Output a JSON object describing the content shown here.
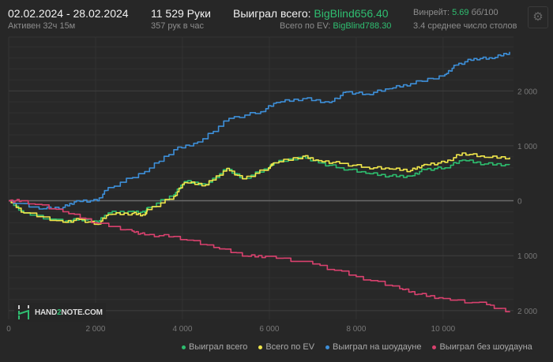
{
  "header": {
    "date_range": "02.02.2024 - 28.02.2024",
    "active": "Активен 32ч 15м",
    "hands": "11 529 Руки",
    "hands_per_hour": "357 рук в час",
    "won_total_label": "Выиграл всего:",
    "won_total_value": "BigBlind656.40",
    "ev_label": "Всего по EV:",
    "ev_value": "BigBlind788.30",
    "winrate_label": "Винрейт:",
    "winrate_value": "5.69",
    "winrate_unit": "бб/100",
    "tables": "3.4 среднее число столов",
    "settings_icon": "gear-icon"
  },
  "logo": {
    "text_a": "HAND",
    "text_b": "2",
    "text_c": "NOTE.COM"
  },
  "colors": {
    "accent_green": "#2fbf71",
    "series": [
      "#2dbd6e",
      "#f0e64a",
      "#3d8fd9",
      "#d9416e"
    ]
  },
  "chart_data": {
    "type": "line",
    "xlim": [
      0,
      11620
    ],
    "ylim": [
      -2160,
      2980
    ],
    "x_ticks": [
      {
        "v": 0,
        "label": "0"
      },
      {
        "v": 2000,
        "label": "2 000"
      },
      {
        "v": 4000,
        "label": "4 000"
      },
      {
        "v": 6000,
        "label": "6 000"
      },
      {
        "v": 8000,
        "label": "8 000"
      },
      {
        "v": 10000,
        "label": "10 000"
      }
    ],
    "y_ticks": [
      {
        "v": 2000,
        "label": "2 000"
      },
      {
        "v": 1000,
        "label": "1 000"
      },
      {
        "v": 0,
        "label": "0"
      },
      {
        "v": -1000,
        "label": "1 000"
      },
      {
        "v": -2000,
        "label": "2 000"
      }
    ],
    "grid": true,
    "legend_position": "bottom-right",
    "series": [
      {
        "name": "Выиграл всего",
        "color": "#2dbd6e",
        "points": [
          [
            0,
            0
          ],
          [
            345,
            -220
          ],
          [
            1250,
            -390
          ],
          [
            1620,
            -330
          ],
          [
            2040,
            -390
          ],
          [
            2290,
            -220
          ],
          [
            2840,
            -190
          ],
          [
            3130,
            -220
          ],
          [
            3200,
            -120
          ],
          [
            3800,
            110
          ],
          [
            4040,
            350
          ],
          [
            4530,
            300
          ],
          [
            5020,
            590
          ],
          [
            5380,
            400
          ],
          [
            5980,
            600
          ],
          [
            6110,
            690
          ],
          [
            6770,
            810
          ],
          [
            7130,
            690
          ],
          [
            7620,
            600
          ],
          [
            8220,
            500
          ],
          [
            8760,
            450
          ],
          [
            9250,
            450
          ],
          [
            9560,
            570
          ],
          [
            10040,
            600
          ],
          [
            10440,
            740
          ],
          [
            10950,
            670
          ],
          [
            11529,
            656
          ]
        ]
      },
      {
        "name": "Всего по EV",
        "color": "#f0e64a",
        "points": [
          [
            0,
            0
          ],
          [
            345,
            -220
          ],
          [
            1250,
            -390
          ],
          [
            1620,
            -340
          ],
          [
            2040,
            -430
          ],
          [
            2290,
            -250
          ],
          [
            2840,
            -230
          ],
          [
            3130,
            -260
          ],
          [
            3200,
            -160
          ],
          [
            3800,
            80
          ],
          [
            4040,
            330
          ],
          [
            4530,
            290
          ],
          [
            5020,
            590
          ],
          [
            5380,
            400
          ],
          [
            5980,
            600
          ],
          [
            6110,
            690
          ],
          [
            6770,
            810
          ],
          [
            7130,
            730
          ],
          [
            7620,
            680
          ],
          [
            8220,
            610
          ],
          [
            8760,
            580
          ],
          [
            9250,
            550
          ],
          [
            9560,
            660
          ],
          [
            10040,
            700
          ],
          [
            10440,
            870
          ],
          [
            10950,
            790
          ],
          [
            11529,
            788
          ]
        ]
      },
      {
        "name": "Выиграл на шоудауне",
        "color": "#3d8fd9",
        "points": [
          [
            0,
            0
          ],
          [
            700,
            -150
          ],
          [
            1250,
            -120
          ],
          [
            1560,
            0
          ],
          [
            2040,
            0
          ],
          [
            2290,
            240
          ],
          [
            3130,
            530
          ],
          [
            3800,
            930
          ],
          [
            4350,
            1070
          ],
          [
            5070,
            1500
          ],
          [
            5800,
            1620
          ],
          [
            6160,
            1790
          ],
          [
            6770,
            1860
          ],
          [
            7380,
            1790
          ],
          [
            7760,
            1980
          ],
          [
            8220,
            1940
          ],
          [
            8760,
            2040
          ],
          [
            9250,
            2130
          ],
          [
            10040,
            2300
          ],
          [
            10290,
            2470
          ],
          [
            10710,
            2590
          ],
          [
            11130,
            2590
          ],
          [
            11529,
            2710
          ]
        ]
      },
      {
        "name": "Выиграл без шоудауна",
        "color": "#d9416e",
        "points": [
          [
            0,
            0
          ],
          [
            290,
            0
          ],
          [
            1250,
            -200
          ],
          [
            2040,
            -410
          ],
          [
            2840,
            -550
          ],
          [
            3130,
            -620
          ],
          [
            3800,
            -650
          ],
          [
            4720,
            -850
          ],
          [
            5510,
            -1010
          ],
          [
            5990,
            -1010
          ],
          [
            7000,
            -1150
          ],
          [
            8000,
            -1380
          ],
          [
            9000,
            -1600
          ],
          [
            9420,
            -1700
          ],
          [
            10000,
            -1780
          ],
          [
            11000,
            -1890
          ],
          [
            11529,
            -2030
          ]
        ]
      }
    ]
  }
}
